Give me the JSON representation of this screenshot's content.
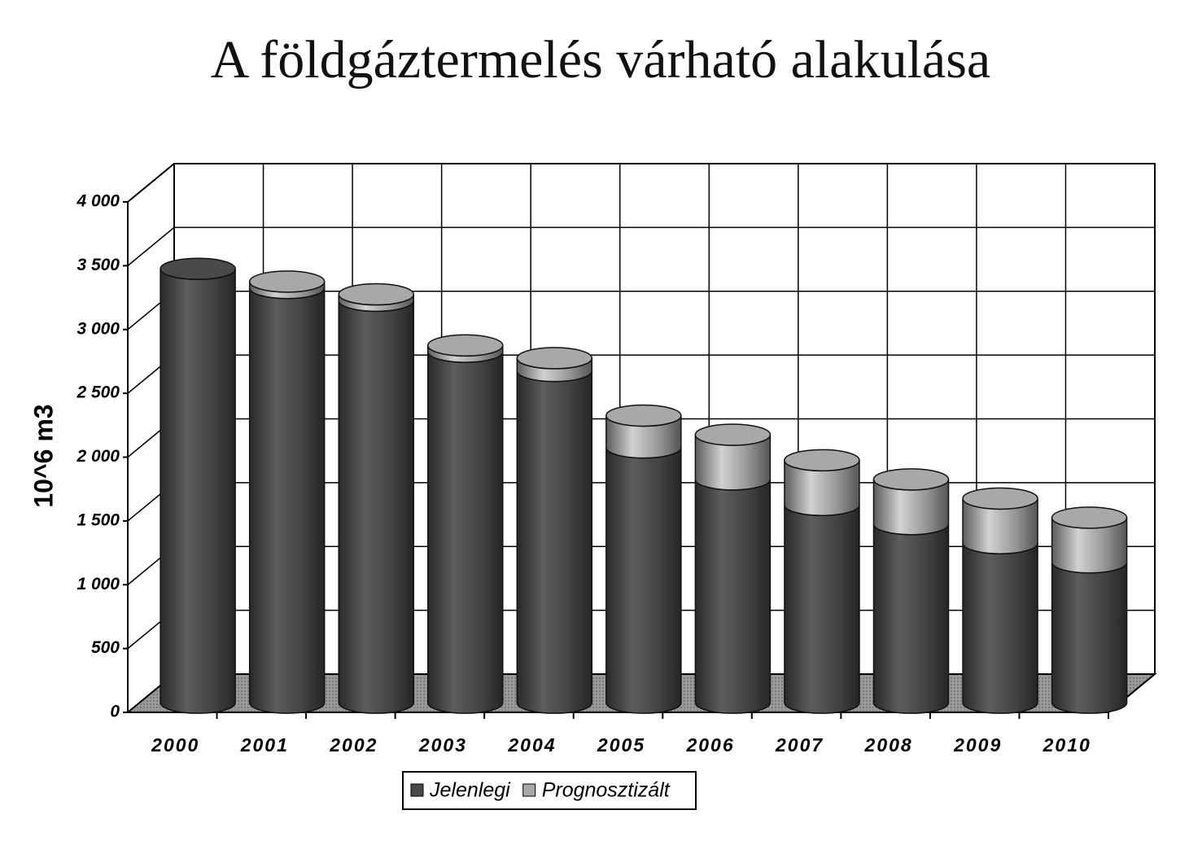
{
  "chart_data": {
    "type": "bar3d-cylinder-stacked",
    "title": "A földgáztermelés várható alakulása",
    "y_label": "10^6 m3",
    "categories": [
      "2000",
      "2001",
      "2002",
      "2003",
      "2004",
      "2005",
      "2006",
      "2007",
      "2008",
      "2009",
      "2010"
    ],
    "series": [
      {
        "name": "Jelenlegi",
        "color": "#4a4a4a",
        "values": [
          3400,
          3250,
          3150,
          2750,
          2600,
          2000,
          1750,
          1550,
          1400,
          1250,
          1100
        ]
      },
      {
        "name": "Prognosztizált",
        "color": "#a8a8a8",
        "values": [
          0,
          50,
          50,
          50,
          100,
          250,
          350,
          350,
          350,
          350,
          350
        ]
      }
    ],
    "stacked": true,
    "ylim": [
      0,
      4000
    ],
    "yticks": [
      0,
      500,
      {
        "value": 1000,
        "label": "1 000"
      },
      {
        "value": 1500,
        "label": "1 500"
      },
      {
        "value": 2000,
        "label": "2 000"
      },
      {
        "value": 2500,
        "label": "2 500"
      },
      {
        "value": 3000,
        "label": "3 000"
      },
      {
        "value": 3500,
        "label": "3 500"
      },
      {
        "value": 4000,
        "label": "4 000"
      }
    ],
    "grid": true,
    "legend": "bottom"
  }
}
